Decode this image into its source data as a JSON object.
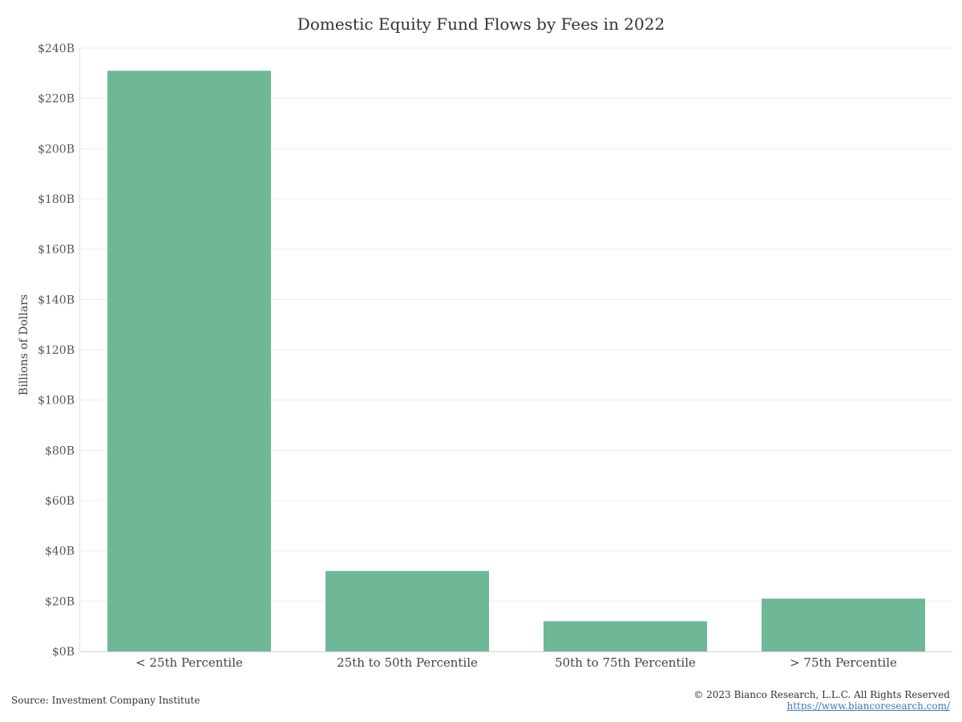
{
  "chart_data": {
    "type": "bar",
    "title": "Domestic Equity Fund Flows by Fees in 2022",
    "xlabel": "",
    "ylabel": "Billions of Dollars",
    "categories": [
      "< 25th Percentile",
      "25th to 50th Percentile",
      "50th to 75th Percentile",
      "> 75th Percentile"
    ],
    "values": [
      231,
      32,
      12,
      21
    ],
    "ylim": [
      0,
      240
    ],
    "yticks": [
      0,
      20,
      40,
      60,
      80,
      100,
      120,
      140,
      160,
      180,
      200,
      220,
      240
    ],
    "ytick_labels": [
      "$0B",
      "$20B",
      "$40B",
      "$60B",
      "$80B",
      "$100B",
      "$120B",
      "$140B",
      "$160B",
      "$180B",
      "$200B",
      "$220B",
      "$240B"
    ],
    "bar_color": "#6eb898",
    "grid": true,
    "legend": "none"
  },
  "footer": {
    "source": "Source: Investment Company Institute",
    "copyright": "© 2023 Bianco Research, L.L.C. All Rights Reserved",
    "website": "https://www.biancoresearch.com/"
  }
}
